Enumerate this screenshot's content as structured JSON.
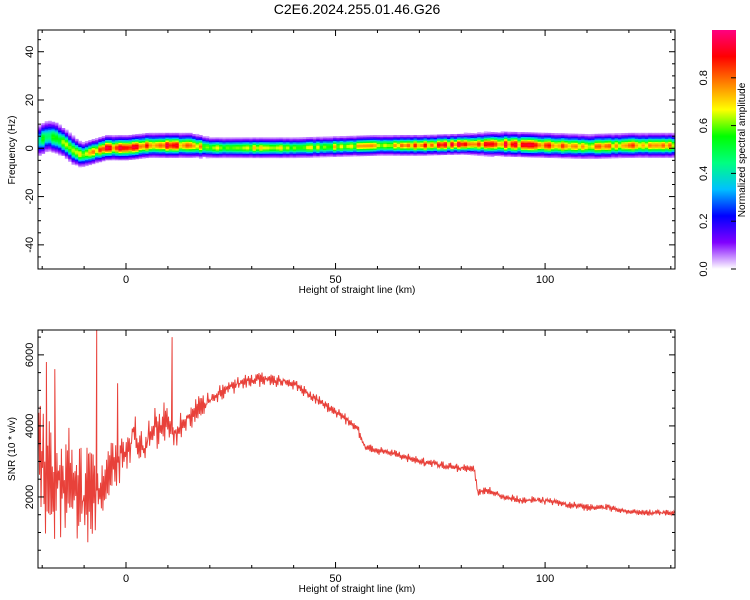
{
  "title": "C2E6.2024.255.01.46.G26",
  "chart_data": [
    {
      "type": "heatmap",
      "xlabel": "Height of straight line (km)",
      "ylabel": "Frequency (Hz)",
      "xlim": [
        -21,
        131
      ],
      "ylim": [
        -50,
        49
      ],
      "x_ticks": [
        0,
        50,
        100
      ],
      "y_ticks": [
        -40,
        -20,
        0,
        20,
        40
      ],
      "colorbar": {
        "label": "Normalized spectral amplitude",
        "range": [
          0.0,
          1.0
        ],
        "ticks": [
          0.0,
          0.2,
          0.4,
          0.6,
          0.8
        ],
        "colors": [
          "#ffffff",
          "#8000ff",
          "#0000ff",
          "#00c0ff",
          "#00ff80",
          "#00ff00",
          "#ffff00",
          "#ff8000",
          "#ff0000",
          "#ff0080"
        ]
      },
      "ridge": {
        "x": [
          -21,
          -19,
          -17,
          -15,
          -13,
          -11,
          -9,
          -7,
          -5,
          0,
          5,
          10,
          15,
          20,
          30,
          40,
          50,
          60,
          70,
          80,
          90,
          100,
          110,
          120,
          131
        ],
        "freq": [
          3,
          5,
          4,
          2,
          -1,
          -3,
          -2,
          -1,
          0,
          0,
          1,
          1,
          1,
          0,
          0,
          0,
          0.5,
          1,
          1,
          1.5,
          1.5,
          1,
          0.5,
          1,
          1
        ],
        "width": [
          4,
          4,
          4,
          3.5,
          3.5,
          3,
          3,
          3,
          3,
          3,
          3,
          3,
          3,
          2.5,
          2.5,
          2.5,
          2.5,
          2.5,
          2.5,
          2.5,
          3,
          3,
          3,
          3,
          3
        ],
        "amplitude": [
          0.5,
          0.5,
          0.55,
          0.6,
          0.6,
          0.65,
          0.7,
          0.8,
          0.85,
          0.85,
          0.8,
          0.85,
          0.8,
          0.6,
          0.65,
          0.6,
          0.65,
          0.7,
          0.8,
          0.85,
          0.85,
          0.8,
          0.7,
          0.75,
          0.75
        ]
      }
    },
    {
      "type": "line",
      "xlabel": "Height of straight line (km)",
      "ylabel": "SNR (10 * v/v)",
      "xlim": [
        -21,
        131
      ],
      "ylim": [
        0,
        6700
      ],
      "x_ticks": [
        0,
        50,
        100
      ],
      "y_ticks": [
        2000,
        4000,
        6000
      ],
      "series": [
        {
          "color": "#e8413a",
          "x": [
            -21,
            -19,
            -17,
            -15,
            -13,
            -11,
            -9,
            -7,
            -5,
            -3,
            -1,
            0,
            2,
            4,
            6,
            8,
            10,
            12,
            15,
            20,
            25,
            30,
            35,
            40,
            45,
            50,
            55,
            57,
            60,
            65,
            70,
            75,
            80,
            83,
            84,
            86,
            90,
            95,
            100,
            105,
            110,
            115,
            120,
            125,
            131
          ],
          "y": [
            3200,
            2800,
            2600,
            2400,
            2200,
            2000,
            2100,
            2300,
            2600,
            3000,
            3100,
            3200,
            3800,
            3400,
            3800,
            4000,
            4200,
            3700,
            4300,
            4700,
            5100,
            5300,
            5300,
            5200,
            4800,
            4400,
            4000,
            3400,
            3300,
            3200,
            3000,
            2900,
            2800,
            2800,
            2100,
            2200,
            2000,
            1900,
            1900,
            1800,
            1700,
            1700,
            1600,
            1550,
            1550
          ],
          "noise": [
            1800,
            1800,
            1600,
            1500,
            1400,
            1300,
            1300,
            1000,
            900,
            700,
            600,
            500,
            500,
            500,
            500,
            500,
            500,
            400,
            350,
            250,
            200,
            180,
            160,
            150,
            150,
            150,
            130,
            120,
            110,
            110,
            100,
            100,
            100,
            100,
            100,
            100,
            100,
            100,
            100,
            90,
            90,
            90,
            90,
            80,
            80
          ],
          "spikes": [
            {
              "x": -7,
              "y": 6700
            },
            {
              "x": 11,
              "y": 6500
            },
            {
              "x": -19,
              "y": 5800
            },
            {
              "x": -17,
              "y": 5600
            },
            {
              "x": -2,
              "y": 5200
            }
          ]
        }
      ]
    }
  ]
}
